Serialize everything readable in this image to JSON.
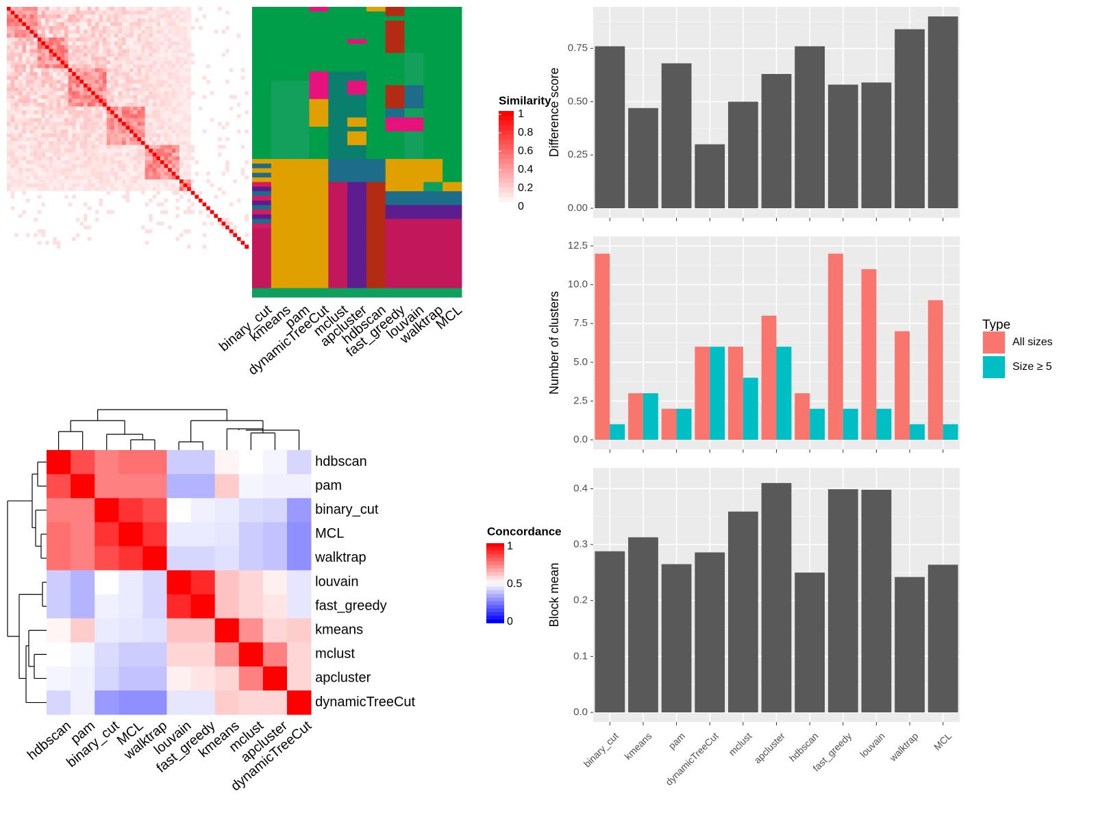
{
  "methods": [
    "binary_cut",
    "kmeans",
    "pam",
    "dynamicTreeCut",
    "mclust",
    "apcluster",
    "hdbscan",
    "fast_greedy",
    "louvain",
    "walktrap",
    "MCL"
  ],
  "chart_data": [
    {
      "type": "heatmap",
      "name": "similarity",
      "legend_title": "Similarity",
      "legend_ticks": [
        "0",
        "0.2",
        "0.4",
        "0.6",
        "0.8",
        "1"
      ],
      "n": 63,
      "description_levels": "pairwise term similarity, block diagonal with diagonal = 1"
    },
    {
      "type": "heatmap",
      "name": "cluster-membership",
      "columns": [
        "binary_cut",
        "kmeans",
        "pam",
        "dynamicTreeCut",
        "mclust",
        "apcluster",
        "hdbscan",
        "fast_greedy",
        "louvain",
        "walktrap",
        "MCL"
      ]
    },
    {
      "type": "heatmap",
      "name": "concordance",
      "legend_title": "Concordance",
      "legend_ticks": [
        "0",
        "0.5",
        "1"
      ],
      "order": [
        "hdbscan",
        "pam",
        "binary_cut",
        "MCL",
        "walktrap",
        "louvain",
        "fast_greedy",
        "kmeans",
        "mclust",
        "apcluster",
        "dynamicTreeCut"
      ],
      "values": [
        [
          1.0,
          0.85,
          0.75,
          0.78,
          0.78,
          0.4,
          0.4,
          0.52,
          0.5,
          0.48,
          0.42
        ],
        [
          0.85,
          1.0,
          0.75,
          0.75,
          0.75,
          0.35,
          0.35,
          0.6,
          0.48,
          0.47,
          0.47
        ],
        [
          0.75,
          0.75,
          1.0,
          0.9,
          0.85,
          0.5,
          0.47,
          0.46,
          0.43,
          0.42,
          0.3
        ],
        [
          0.78,
          0.75,
          0.9,
          1.0,
          0.9,
          0.46,
          0.46,
          0.45,
          0.4,
          0.38,
          0.28
        ],
        [
          0.78,
          0.75,
          0.85,
          0.9,
          1.0,
          0.42,
          0.42,
          0.44,
          0.4,
          0.38,
          0.28
        ],
        [
          0.4,
          0.35,
          0.5,
          0.46,
          0.42,
          1.0,
          0.92,
          0.62,
          0.58,
          0.53,
          0.45
        ],
        [
          0.4,
          0.35,
          0.47,
          0.46,
          0.42,
          0.92,
          1.0,
          0.62,
          0.58,
          0.55,
          0.45
        ],
        [
          0.52,
          0.6,
          0.46,
          0.45,
          0.44,
          0.62,
          0.62,
          1.0,
          0.72,
          0.58,
          0.6
        ],
        [
          0.5,
          0.48,
          0.43,
          0.4,
          0.4,
          0.58,
          0.58,
          0.72,
          1.0,
          0.75,
          0.58
        ],
        [
          0.48,
          0.47,
          0.42,
          0.38,
          0.38,
          0.53,
          0.55,
          0.58,
          0.75,
          1.0,
          0.58
        ],
        [
          0.42,
          0.47,
          0.3,
          0.28,
          0.28,
          0.45,
          0.45,
          0.6,
          0.58,
          0.58,
          1.0
        ]
      ]
    },
    {
      "type": "bar",
      "name": "difference-score",
      "ylabel": "Difference score",
      "categories": [
        "binary_cut",
        "kmeans",
        "pam",
        "dynamicTreeCut",
        "mclust",
        "apcluster",
        "hdbscan",
        "fast_greedy",
        "louvain",
        "walktrap",
        "MCL"
      ],
      "values": [
        0.76,
        0.47,
        0.68,
        0.3,
        0.5,
        0.63,
        0.76,
        0.58,
        0.59,
        0.84,
        0.9
      ],
      "ylim": [
        0,
        0.9
      ],
      "yticks": [
        "0.00",
        "0.25",
        "0.50",
        "0.75"
      ],
      "color": "#595959"
    },
    {
      "type": "bar",
      "name": "number-of-clusters",
      "ylabel": "Number of clusters",
      "categories": [
        "binary_cut",
        "kmeans",
        "pam",
        "dynamicTreeCut",
        "mclust",
        "apcluster",
        "hdbscan",
        "fast_greedy",
        "louvain",
        "walktrap",
        "MCL"
      ],
      "series": [
        {
          "name": "All sizes",
          "color": "#F8766D",
          "values": [
            12,
            3,
            2,
            6,
            6,
            8,
            3,
            12,
            11,
            7,
            9
          ]
        },
        {
          "name": "Size ≥ 5",
          "color": "#00BFC4",
          "values": [
            1,
            3,
            2,
            6,
            4,
            6,
            2,
            2,
            2,
            1,
            1
          ]
        }
      ],
      "ylim": [
        0,
        12.5
      ],
      "yticks": [
        "0.0",
        "2.5",
        "5.0",
        "7.5",
        "10.0",
        "12.5"
      ],
      "legend_title": "Type"
    },
    {
      "type": "bar",
      "name": "block-mean",
      "ylabel": "Block mean",
      "categories": [
        "binary_cut",
        "kmeans",
        "pam",
        "dynamicTreeCut",
        "mclust",
        "apcluster",
        "hdbscan",
        "fast_greedy",
        "louvain",
        "walktrap",
        "MCL"
      ],
      "values": [
        0.288,
        0.313,
        0.265,
        0.286,
        0.359,
        0.41,
        0.25,
        0.399,
        0.398,
        0.242,
        0.264
      ],
      "ylim": [
        0,
        0.42
      ],
      "yticks": [
        "0.0",
        "0.1",
        "0.2",
        "0.3",
        "0.4"
      ],
      "color": "#595959"
    }
  ]
}
